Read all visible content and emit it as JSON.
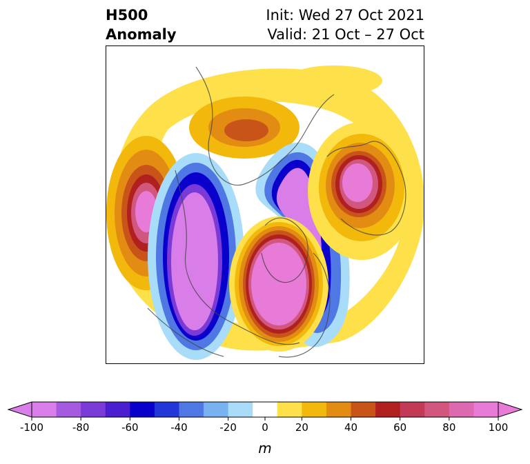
{
  "title": {
    "variable": "H500",
    "kind": "Anomaly",
    "init": "Init: Wed 27 Oct 2021",
    "valid": "Valid: 21 Oct – 27 Oct"
  },
  "colorbar": {
    "unit": "m",
    "extend": "both",
    "bounds": [
      -100,
      -90,
      -80,
      -70,
      -60,
      -50,
      -40,
      -30,
      -20,
      -10,
      10,
      20,
      30,
      40,
      50,
      60,
      70,
      80,
      90,
      100
    ],
    "colors": [
      "#d97ee8",
      "#a45be0",
      "#7a3ad8",
      "#4a1fd0",
      "#0a00cc",
      "#2336d8",
      "#4f78e4",
      "#78b2f0",
      "#a9dcf8",
      "#ffffff",
      "#fee04a",
      "#f2b90c",
      "#e38c13",
      "#c9541a",
      "#b0201f",
      "#c23a55",
      "#d1577f",
      "#dd6ab0",
      "#e87ad8"
    ],
    "under_color": "#d97ee8",
    "over_color": "#e87ad8",
    "ticks": [
      "-100",
      "-80",
      "-60",
      "-40",
      "-20",
      "0",
      "20",
      "40",
      "60",
      "80",
      "100"
    ]
  }
}
